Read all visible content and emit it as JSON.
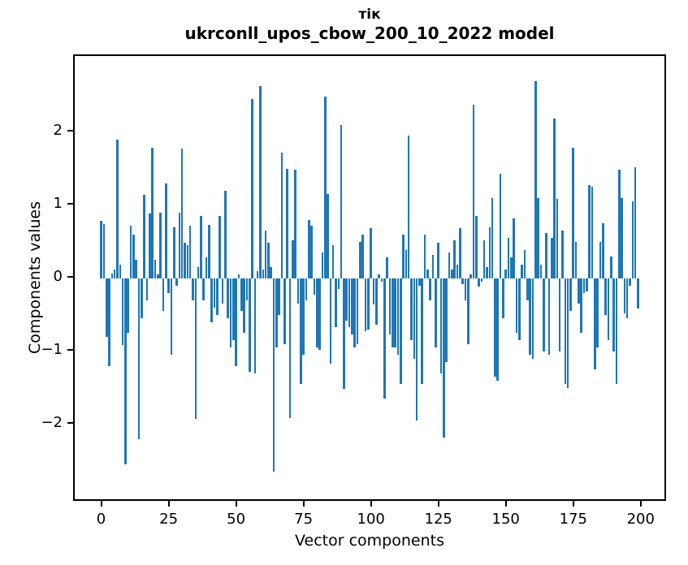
{
  "chart_data": {
    "type": "bar",
    "suptitle": "тік",
    "title": "ukrconll_upos_cbow_200_10_2022 model",
    "xlabel": "Vector components",
    "ylabel": "Components values",
    "bar_color": "#1f77b4",
    "background_color": "#ffffff",
    "grid": false,
    "legend": "none",
    "n_components": 200,
    "x_tick_values": [
      0,
      25,
      50,
      75,
      100,
      125,
      150,
      175,
      200
    ],
    "x_tick_labels": [
      "0",
      "25",
      "50",
      "75",
      "100",
      "125",
      "150",
      "175",
      "200"
    ],
    "y_tick_values": [
      2,
      1,
      0,
      -1,
      -2
    ],
    "y_tick_labels": [
      "2",
      "1",
      "0",
      "−1",
      "−2"
    ],
    "xlim": [
      -10.4,
      209.4
    ],
    "ylim": [
      -3.07,
      3.04
    ],
    "values": [
      0.79,
      0.74,
      -0.8,
      -1.2,
      0.06,
      0.12,
      1.9,
      0.18,
      -0.92,
      -2.55,
      -0.75,
      0.72,
      0.6,
      0.25,
      -2.2,
      -0.55,
      1.14,
      -0.3,
      0.88,
      1.78,
      0.25,
      0.05,
      0.9,
      -0.45,
      1.3,
      -0.2,
      -1.05,
      0.7,
      -0.1,
      0.9,
      1.77,
      0.48,
      0.45,
      0.72,
      -0.3,
      -1.93,
      0.15,
      0.85,
      -0.3,
      0.28,
      0.73,
      -0.6,
      -0.4,
      -0.5,
      0.85,
      -0.35,
      1.2,
      -0.55,
      -0.95,
      -0.85,
      -1.2,
      0.05,
      -0.45,
      -0.75,
      -0.3,
      -1.28,
      2.45,
      -1.3,
      0.1,
      2.63,
      0.12,
      0.65,
      0.48,
      0.15,
      -2.65,
      -0.95,
      -0.5,
      1.72,
      -0.9,
      1.5,
      -1.92,
      0.52,
      1.48,
      -0.35,
      -1.45,
      -1.05,
      -0.3,
      0.8,
      0.72,
      -0.23,
      -0.95,
      -0.98,
      0.35,
      2.48,
      1.15,
      -1.17,
      0.45,
      -0.67,
      -0.15,
      2.1,
      -1.52,
      -0.58,
      -0.67,
      -0.77,
      -0.95,
      -0.9,
      0.5,
      0.6,
      -0.73,
      -0.7,
      0.68,
      -0.36,
      -0.64,
      0.05,
      -0.05,
      -1.65,
      0.28,
      -0.77,
      -0.95,
      -0.95,
      -1.05,
      -1.45,
      0.6,
      0.38,
      1.95,
      -0.85,
      -1.1,
      -1.95,
      -0.1,
      -1.45,
      0.6,
      0.12,
      -0.3,
      0.32,
      -0.95,
      0.48,
      -1.3,
      -2.18,
      -1.15,
      0.35,
      0.12,
      0.52,
      0.18,
      0.68,
      -0.08,
      -0.3,
      -0.9,
      0.05,
      2.37,
      0.85,
      -0.12,
      -0.05,
      0.52,
      0.15,
      0.7,
      1.1,
      -1.35,
      -1.4,
      1.43,
      -0.55,
      0.12,
      0.55,
      0.28,
      0.82,
      -0.75,
      -0.85,
      0.18,
      0.38,
      -0.3,
      -1.05,
      -1.1,
      2.7,
      1.1,
      0.18,
      -1.0,
      0.62,
      -1.05,
      0.55,
      2.18,
      1.08,
      -1.0,
      0.65,
      -1.45,
      -1.5,
      -0.45,
      1.78,
      0.5,
      -0.35,
      -0.75,
      -0.2,
      -0.18,
      1.27,
      1.25,
      -1.25,
      -0.95,
      0.5,
      0.75,
      -0.5,
      -0.85,
      0.3,
      -1.0,
      -1.45,
      1.48,
      1.1,
      -0.48,
      -0.55,
      -0.1,
      1.05,
      1.52,
      -0.42
    ]
  }
}
